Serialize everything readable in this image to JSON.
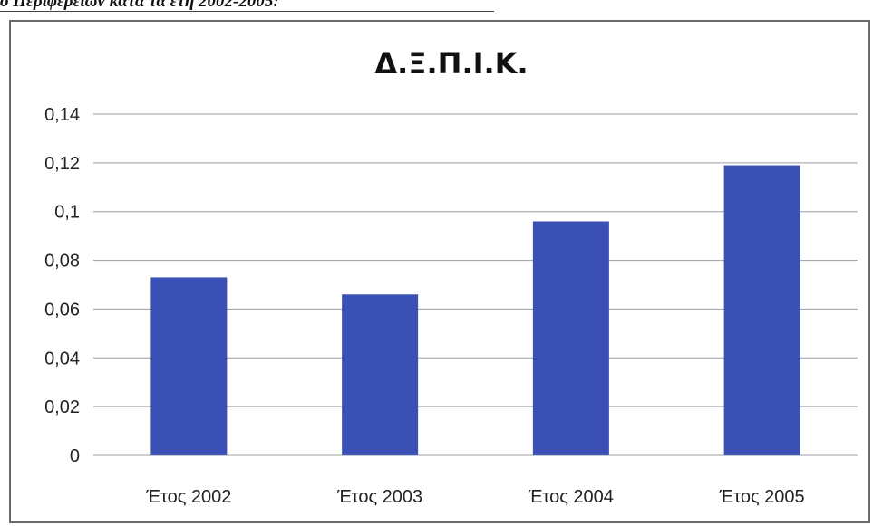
{
  "caption": "ό Περιφερειών κατά τα έτη 2002-2005:",
  "colors": {
    "bar": "#3a50b5",
    "grid": "#9a9ea4",
    "frame": "#6a6a6a"
  },
  "chart_data": {
    "type": "bar",
    "title": "Δ.Ξ.Π.Ι.Κ.",
    "categories": [
      "Έτος 2002",
      "Έτος 2003",
      "Έτος 2004",
      "Έτος 2005"
    ],
    "values": [
      0.073,
      0.066,
      0.096,
      0.119
    ],
    "ylim": [
      0,
      0.14
    ],
    "yticks": [
      0,
      0.02,
      0.04,
      0.06,
      0.08,
      0.1,
      0.12,
      0.14
    ],
    "ytick_labels": [
      "0",
      "0,02",
      "0,04",
      "0,06",
      "0,08",
      "0,1",
      "0,12",
      "0,14"
    ],
    "grid": true,
    "legend": "none"
  }
}
